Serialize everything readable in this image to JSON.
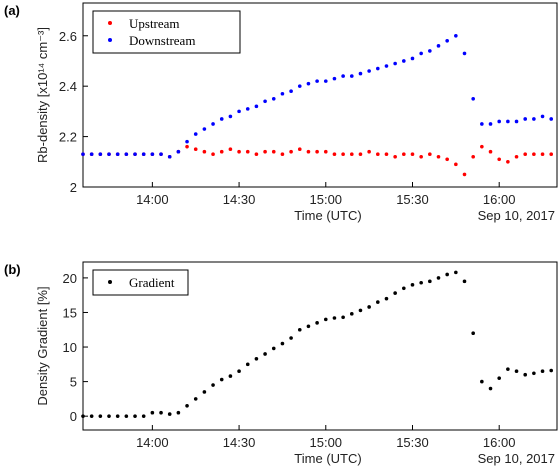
{
  "chart_data": [
    {
      "type": "scatter",
      "panel_label": "(a)",
      "ylabel": "Rb-density  [x10¹⁴ cm⁻³]",
      "xlabel": "Time (UTC)",
      "annotation": "Sep 10, 2017",
      "x": [
        "13:36",
        "13:39",
        "13:42",
        "13:45",
        "13:48",
        "13:51",
        "13:54",
        "13:57",
        "14:00",
        "14:03",
        "14:06",
        "14:09",
        "14:12",
        "14:15",
        "14:18",
        "14:21",
        "14:24",
        "14:27",
        "14:30",
        "14:33",
        "14:36",
        "14:39",
        "14:42",
        "14:45",
        "14:48",
        "14:51",
        "14:54",
        "14:57",
        "15:00",
        "15:03",
        "15:06",
        "15:09",
        "15:12",
        "15:15",
        "15:18",
        "15:21",
        "15:24",
        "15:27",
        "15:30",
        "15:33",
        "15:36",
        "15:39",
        "15:42",
        "15:45",
        "15:48",
        "15:51",
        "15:54",
        "15:57",
        "16:00",
        "16:03",
        "16:06",
        "16:09",
        "16:12",
        "16:15",
        "16:18"
      ],
      "series": [
        {
          "name": "Upstream",
          "color": "#ff0000",
          "values": [
            2.13,
            2.13,
            2.13,
            2.13,
            2.13,
            2.13,
            2.13,
            2.13,
            2.13,
            2.13,
            2.12,
            2.14,
            2.16,
            2.15,
            2.14,
            2.13,
            2.14,
            2.15,
            2.14,
            2.14,
            2.13,
            2.14,
            2.14,
            2.13,
            2.14,
            2.15,
            2.14,
            2.14,
            2.14,
            2.13,
            2.13,
            2.13,
            2.13,
            2.14,
            2.13,
            2.13,
            2.12,
            2.13,
            2.13,
            2.12,
            2.13,
            2.12,
            2.11,
            2.09,
            2.05,
            2.12,
            2.16,
            2.14,
            2.11,
            2.1,
            2.12,
            2.13,
            2.13,
            2.13,
            2.13
          ]
        },
        {
          "name": "Downstream",
          "color": "#0000ff",
          "values": [
            2.13,
            2.13,
            2.13,
            2.13,
            2.13,
            2.13,
            2.13,
            2.13,
            2.13,
            2.13,
            2.12,
            2.14,
            2.18,
            2.21,
            2.23,
            2.25,
            2.27,
            2.28,
            2.3,
            2.31,
            2.32,
            2.34,
            2.35,
            2.37,
            2.38,
            2.4,
            2.41,
            2.42,
            2.42,
            2.43,
            2.44,
            2.44,
            2.45,
            2.46,
            2.47,
            2.48,
            2.49,
            2.5,
            2.51,
            2.53,
            2.54,
            2.56,
            2.58,
            2.6,
            2.53,
            2.35,
            2.25,
            2.25,
            2.26,
            2.26,
            2.26,
            2.27,
            2.27,
            2.28,
            2.27
          ]
        }
      ],
      "xlim": [
        "13:36",
        "16:20"
      ],
      "xticks": [
        "14:00",
        "14:30",
        "15:00",
        "15:30",
        "16:00"
      ],
      "ylim": [
        2,
        2.73
      ],
      "yticks": [
        2,
        2.2,
        2.4,
        2.6
      ],
      "legend": "upper left"
    },
    {
      "type": "scatter",
      "panel_label": "(b)",
      "ylabel": "Density Gradient  [%]",
      "xlabel": "Time (UTC)",
      "annotation": "Sep 10, 2017",
      "x": [
        "13:36",
        "13:39",
        "13:42",
        "13:45",
        "13:48",
        "13:51",
        "13:54",
        "13:57",
        "14:00",
        "14:03",
        "14:06",
        "14:09",
        "14:12",
        "14:15",
        "14:18",
        "14:21",
        "14:24",
        "14:27",
        "14:30",
        "14:33",
        "14:36",
        "14:39",
        "14:42",
        "14:45",
        "14:48",
        "14:51",
        "14:54",
        "14:57",
        "15:00",
        "15:03",
        "15:06",
        "15:09",
        "15:12",
        "15:15",
        "15:18",
        "15:21",
        "15:24",
        "15:27",
        "15:30",
        "15:33",
        "15:36",
        "15:39",
        "15:42",
        "15:45",
        "15:48",
        "15:51",
        "15:54",
        "15:57",
        "16:00",
        "16:03",
        "16:06",
        "16:09",
        "16:12",
        "16:15",
        "16:18"
      ],
      "series": [
        {
          "name": "Gradient",
          "color": "#000000",
          "values": [
            0,
            0,
            0,
            0,
            0,
            0,
            0,
            0,
            0.5,
            0.5,
            0.3,
            0.5,
            1.5,
            2.5,
            3.5,
            4.5,
            5.3,
            5.8,
            6.5,
            7.5,
            8.3,
            9.0,
            9.8,
            10.5,
            11.3,
            12.5,
            13.0,
            13.5,
            14.0,
            14.2,
            14.3,
            14.8,
            15.3,
            15.8,
            16.5,
            17.0,
            17.8,
            18.5,
            19.0,
            19.3,
            19.5,
            20.0,
            20.5,
            20.8,
            19.5,
            12.0,
            5.0,
            4.0,
            5.5,
            6.8,
            6.5,
            6.0,
            6.2,
            6.5,
            6.6
          ]
        }
      ],
      "xlim": [
        "13:36",
        "16:20"
      ],
      "xticks": [
        "14:00",
        "14:30",
        "15:00",
        "15:30",
        "16:00"
      ],
      "ylim": [
        -2,
        22.3
      ],
      "yticks": [
        0,
        5,
        10,
        15,
        20
      ],
      "legend": "upper left"
    }
  ]
}
